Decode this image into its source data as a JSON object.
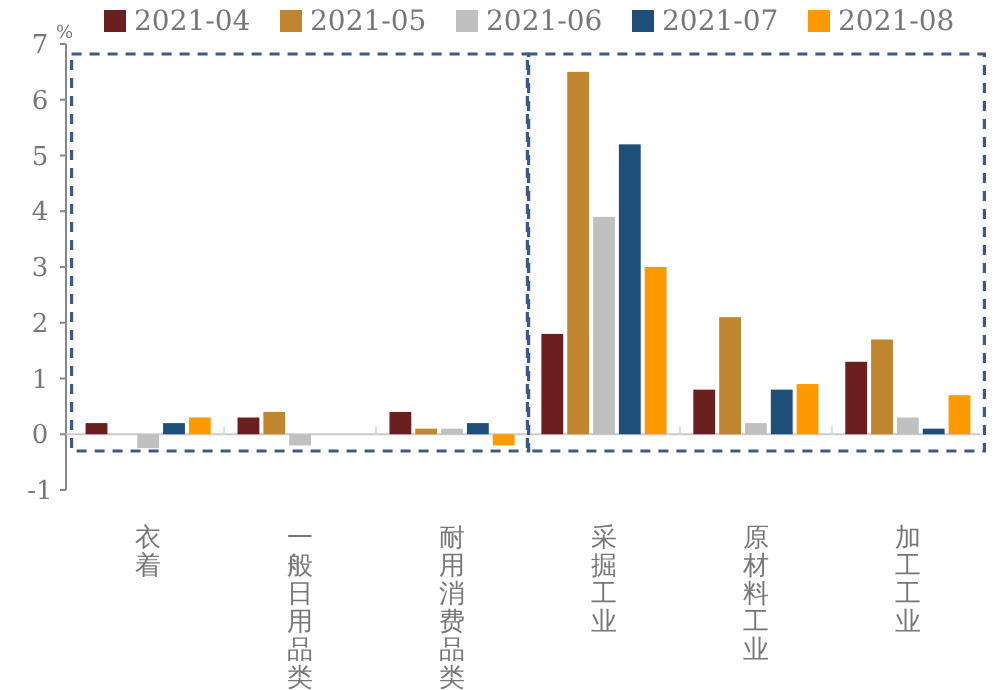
{
  "chart_data": {
    "type": "bar",
    "ylabel": "%",
    "categories": [
      "衣着",
      "一般日用品类",
      "耐用消费品类",
      "采掘工业",
      "原材料工业",
      "加工工业"
    ],
    "series": [
      {
        "name": "2021-04",
        "color": "#6b1f1f",
        "values": [
          0.2,
          0.3,
          0.4,
          1.8,
          0.8,
          1.3
        ]
      },
      {
        "name": "2021-05",
        "color": "#c0862f",
        "values": [
          null,
          0.4,
          0.1,
          6.5,
          2.1,
          1.7
        ]
      },
      {
        "name": "2021-06",
        "color": "#c0c0c0",
        "values": [
          -0.25,
          -0.2,
          0.1,
          3.9,
          0.2,
          0.3
        ]
      },
      {
        "name": "2021-07",
        "color": "#1f4e79",
        "values": [
          0.2,
          null,
          0.2,
          5.2,
          0.8,
          0.1
        ]
      },
      {
        "name": "2021-08",
        "color": "#ff9900",
        "values": [
          0.3,
          null,
          -0.2,
          3.0,
          0.9,
          0.7
        ]
      }
    ],
    "ylim": [
      -1,
      7
    ],
    "yticks": [
      -1,
      0,
      1,
      2,
      3,
      4,
      5,
      6,
      7
    ],
    "legend": "top"
  }
}
